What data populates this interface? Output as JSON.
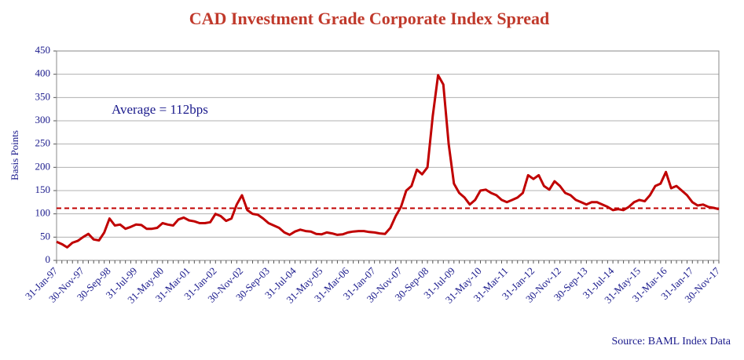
{
  "chart_data": {
    "type": "line",
    "title": "CAD Investment Grade Corporate Index Spread",
    "y_label": "Basis Points",
    "annotation": "Average = 112bps",
    "source": "Source: BAML Index Data",
    "average": 112,
    "color": "#c00000",
    "ylim": [
      0,
      450
    ],
    "yticks": [
      0,
      50,
      100,
      150,
      200,
      250,
      300,
      350,
      400,
      450
    ],
    "grid": true,
    "categories": [
      "31-Jan-97",
      null,
      null,
      null,
      null,
      "30-Nov-97",
      null,
      null,
      null,
      null,
      "30-Sep-98",
      null,
      null,
      null,
      null,
      "31-Jul-99",
      null,
      null,
      null,
      null,
      "31-May-00",
      null,
      null,
      null,
      null,
      "31-Mar-01",
      null,
      null,
      null,
      null,
      "31-Jan-02",
      null,
      null,
      null,
      null,
      "30-Nov-02",
      null,
      null,
      null,
      null,
      "30-Sep-03",
      null,
      null,
      null,
      null,
      "31-Jul-04",
      null,
      null,
      null,
      null,
      "31-May-05",
      null,
      null,
      null,
      null,
      "31-Mar-06",
      null,
      null,
      null,
      null,
      "31-Jan-07",
      null,
      null,
      null,
      null,
      "30-Nov-07",
      null,
      null,
      null,
      null,
      "30-Sep-08",
      null,
      null,
      null,
      null,
      "31-Jul-09",
      null,
      null,
      null,
      null,
      "31-May-10",
      null,
      null,
      null,
      null,
      "31-Mar-11",
      null,
      null,
      null,
      null,
      "31-Jan-12",
      null,
      null,
      null,
      null,
      "30-Nov-12",
      null,
      null,
      null,
      null,
      "30-Sep-13",
      null,
      null,
      null,
      null,
      "31-Jul-14",
      null,
      null,
      null,
      null,
      "31-May-15",
      null,
      null,
      null,
      null,
      "31-Mar-16",
      null,
      null,
      null,
      null,
      "31-Jan-17",
      null,
      null,
      null,
      null,
      "30-Nov-17"
    ],
    "values": [
      40,
      35,
      28,
      38,
      42,
      50,
      57,
      45,
      43,
      60,
      90,
      75,
      77,
      68,
      72,
      77,
      76,
      68,
      68,
      70,
      80,
      77,
      75,
      88,
      92,
      86,
      84,
      80,
      80,
      82,
      100,
      95,
      85,
      90,
      120,
      140,
      108,
      100,
      98,
      90,
      80,
      75,
      70,
      60,
      55,
      62,
      66,
      63,
      62,
      57,
      56,
      60,
      58,
      55,
      56,
      60,
      62,
      63,
      63,
      61,
      60,
      58,
      57,
      70,
      95,
      115,
      150,
      160,
      195,
      185,
      200,
      310,
      398,
      378,
      250,
      165,
      145,
      135,
      120,
      130,
      150,
      152,
      145,
      140,
      130,
      125,
      130,
      135,
      145,
      183,
      175,
      183,
      160,
      152,
      170,
      160,
      145,
      140,
      130,
      125,
      120,
      125,
      125,
      120,
      115,
      108,
      110,
      108,
      115,
      125,
      130,
      127,
      140,
      160,
      165,
      190,
      155,
      160,
      150,
      140,
      125,
      118,
      120,
      115,
      113,
      110
    ]
  }
}
